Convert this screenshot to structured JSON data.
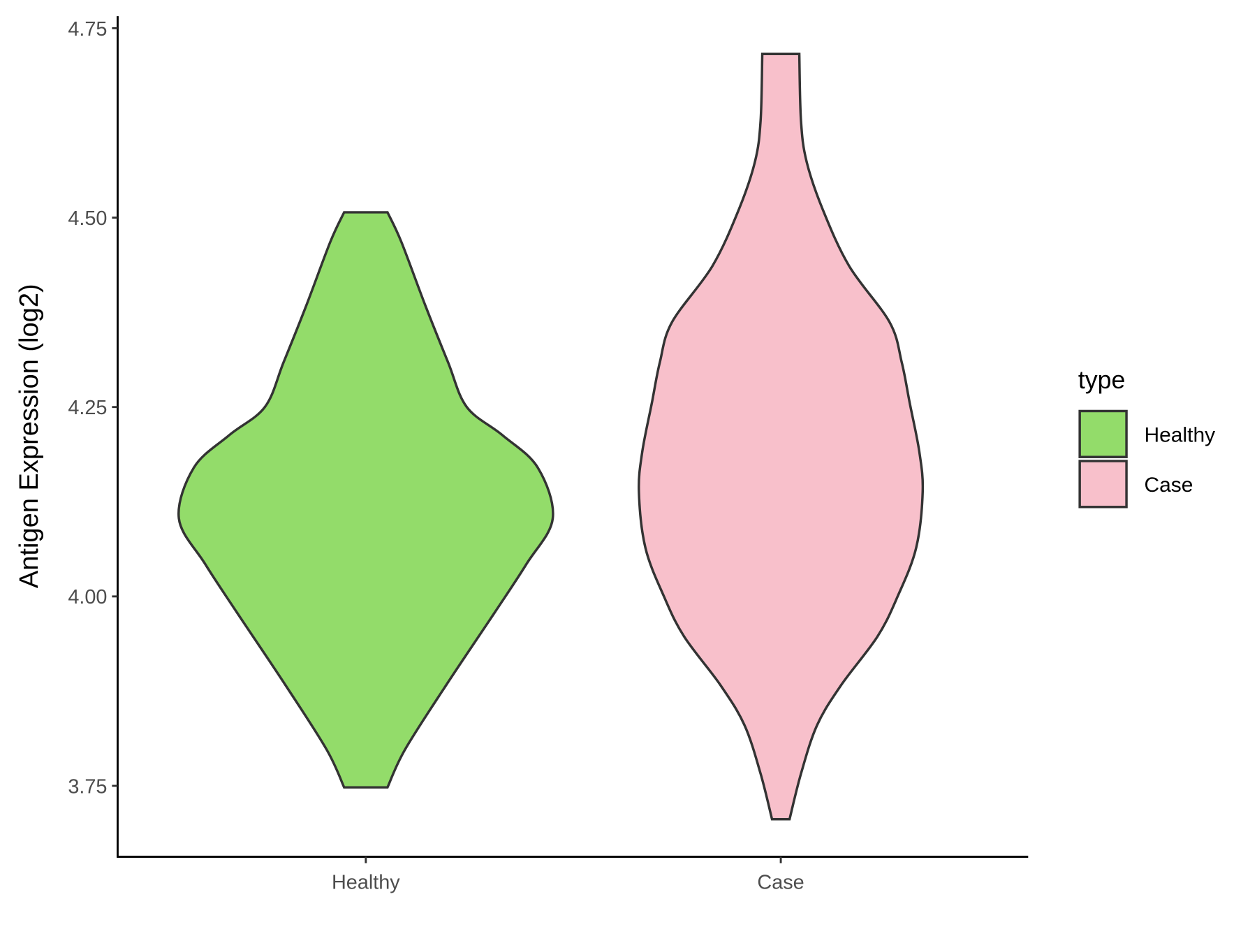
{
  "chart_data": {
    "type": "violin",
    "title": "",
    "xlabel": "",
    "ylabel": "Antigen Expression (log2)",
    "ylim": [
      3.66,
      4.77
    ],
    "yticks": [
      "3.75",
      "4.00",
      "4.25",
      "4.50",
      "4.75"
    ],
    "ytick_values": [
      3.75,
      4.0,
      4.25,
      4.5,
      4.75
    ],
    "categories": [
      "Healthy",
      "Case"
    ],
    "grid": false,
    "legend": {
      "title": "type",
      "placement": "right",
      "entries": [
        "Healthy",
        "Case"
      ]
    },
    "series": [
      {
        "name": "Healthy",
        "color": "#93DC6A",
        "profile": [
          [
            4.507,
            0.116
          ],
          [
            4.468,
            0.19
          ],
          [
            4.383,
            0.32
          ],
          [
            4.309,
            0.44
          ],
          [
            4.25,
            0.54
          ],
          [
            4.213,
            0.73
          ],
          [
            4.17,
            0.92
          ],
          [
            4.103,
            1.0
          ],
          [
            4.043,
            0.86
          ],
          [
            3.979,
            0.69
          ],
          [
            3.883,
            0.43
          ],
          [
            3.798,
            0.21
          ],
          [
            3.748,
            0.116
          ]
        ]
      },
      {
        "name": "Case",
        "color": "#F8C0CB",
        "profile": [
          [
            4.716,
            0.099
          ],
          [
            4.628,
            0.108
          ],
          [
            4.574,
            0.138
          ],
          [
            4.511,
            0.224
          ],
          [
            4.436,
            0.366
          ],
          [
            4.362,
            0.582
          ],
          [
            4.309,
            0.647
          ],
          [
            4.255,
            0.69
          ],
          [
            4.191,
            0.741
          ],
          [
            4.138,
            0.759
          ],
          [
            4.064,
            0.724
          ],
          [
            4.0,
            0.625
          ],
          [
            3.947,
            0.517
          ],
          [
            3.883,
            0.323
          ],
          [
            3.83,
            0.194
          ],
          [
            3.766,
            0.108
          ],
          [
            3.706,
            0.047
          ]
        ]
      }
    ],
    "outline_color": "#333333"
  }
}
